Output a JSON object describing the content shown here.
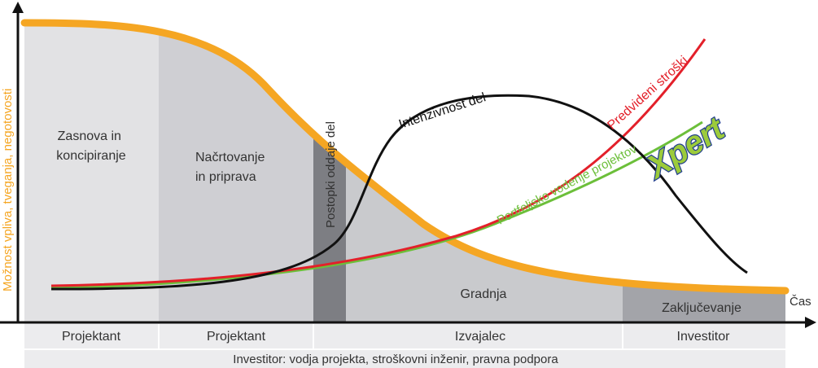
{
  "diagram": {
    "y_axis_label": "Možnost vpliva, tveganja, negotovosti",
    "x_axis_label": "Čas",
    "phases": [
      {
        "label_lines": [
          "Zasnova in",
          "koncipiranje"
        ]
      },
      {
        "label_lines": [
          "Načrtovanje",
          "in priprava"
        ]
      },
      {
        "label": "Postopki oddaje del"
      },
      {
        "label": "Gradnja"
      },
      {
        "label": "Zaključevanje"
      }
    ],
    "roles": [
      "Projektant",
      "Projektant",
      "Izvajalec",
      "Investitor"
    ],
    "bottom_bar": "Investitor: vodja projekta, stroškovni inženir, pravna podpora",
    "curves": {
      "work_intensity": "Intenzivnost del",
      "forecast_costs": "Predvideni stroški",
      "portfolio_management": "Portfeljsko vodenje projektov"
    },
    "logo_text": "Xpert"
  },
  "colors": {
    "influence_curve": "#f5a623",
    "cost_curve": "#e3202a",
    "portfolio_curve": "#6cbf3a",
    "intensity_curve": "#111111",
    "logo_fill": "#9ccb3b",
    "logo_outline": "#23408e"
  }
}
